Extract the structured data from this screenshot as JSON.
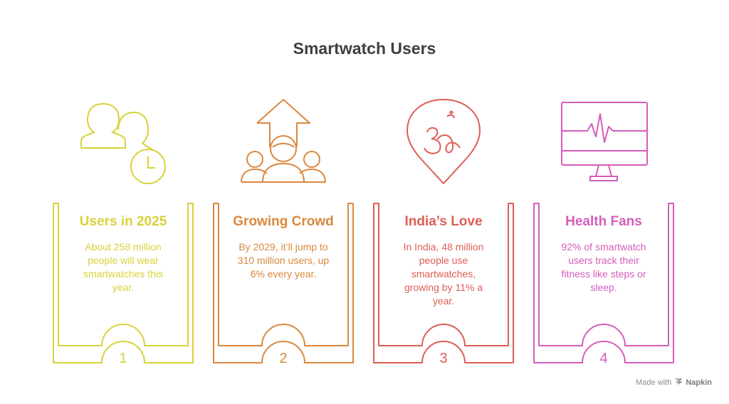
{
  "title": "Smartwatch Users",
  "cards": [
    {
      "title": "Users in 2025",
      "description": "About 258 million people will wear smartwatches this year.",
      "number": "1",
      "color": "#d8d23a",
      "icon": "users-clock-icon"
    },
    {
      "title": "Growing Crowd",
      "description": "By 2029, it’ll jump to 310 million users, up 6% every year.",
      "number": "2",
      "color": "#d9883e",
      "icon": "growing-crowd-icon"
    },
    {
      "title": "India’s Love",
      "description": "In India, 48 million people use smartwatches, growing by 11% a year.",
      "number": "3",
      "color": "#dd5e55",
      "icon": "india-location-icon"
    },
    {
      "title": "Health Fans",
      "description": "92% of smartwatch users track their fitness like steps or sleep.",
      "number": "4",
      "color": "#d55dbb",
      "icon": "heart-monitor-icon"
    }
  ],
  "footer": {
    "made_with": "Made with",
    "brand": "Napkin"
  }
}
